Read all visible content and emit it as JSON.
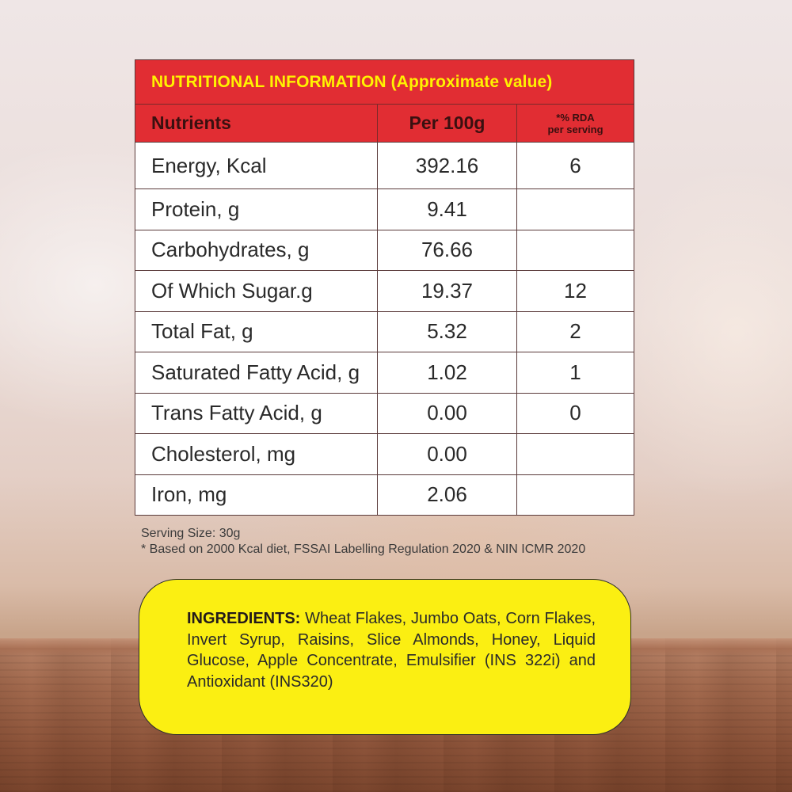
{
  "title": "NUTRITIONAL INFORMATION (Approximate value)",
  "columns": {
    "nutrients": "Nutrients",
    "per100g": "Per 100g",
    "rda_line1": "*% RDA",
    "rda_line2": "per serving"
  },
  "rows": [
    {
      "nutrient": "Energy, Kcal",
      "per100g": "392.16",
      "rda": "6"
    },
    {
      "nutrient": "Protein, g",
      "per100g": "9.41",
      "rda": ""
    },
    {
      "nutrient": "Carbohydrates, g",
      "per100g": "76.66",
      "rda": ""
    },
    {
      "nutrient": "Of Which Sugar.g",
      "per100g": "19.37",
      "rda": "12"
    },
    {
      "nutrient": "Total Fat, g",
      "per100g": "5.32",
      "rda": "2"
    },
    {
      "nutrient": "Saturated Fatty Acid, g",
      "per100g": "1.02",
      "rda": "1"
    },
    {
      "nutrient": "Trans Fatty Acid, g",
      "per100g": "0.00",
      "rda": "0"
    },
    {
      "nutrient": "Cholesterol, mg",
      "per100g": "0.00",
      "rda": ""
    },
    {
      "nutrient": "Iron, mg",
      "per100g": "2.06",
      "rda": ""
    }
  ],
  "notes": {
    "serving": "Serving Size: 30g",
    "footnote": "* Based on 2000 Kcal diet, FSSAI Labelling Regulation 2020 & NIN ICMR 2020"
  },
  "ingredients": {
    "label": "INGREDIENTS:",
    "text": "Wheat Flakes, Jumbo Oats, Corn Flakes, Invert Syrup, Raisins, Slice Almonds, Honey, Liquid Glucose, Apple Concentrate, Emulsifier (INS 322i) and Antioxidant (INS320)"
  },
  "colors": {
    "header_red": "#e12d33",
    "title_yellow": "#fff200",
    "ingredients_yellow": "#fbef12"
  }
}
